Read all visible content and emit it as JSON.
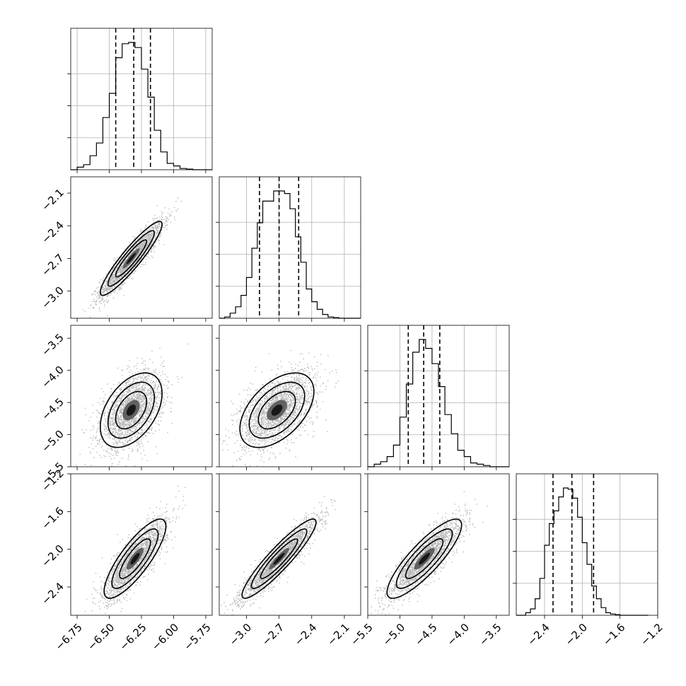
{
  "chart_data": {
    "type": "corner",
    "parameters": [
      {
        "range": [
          -6.8,
          -5.7
        ],
        "ticks": [
          -6.75,
          -6.5,
          -6.25,
          -6.0,
          -5.75
        ],
        "tick_labels": [
          "−6.75",
          "−6.50",
          "−6.25",
          "−6.00",
          "−5.75"
        ],
        "quantiles": [
          -6.45,
          -6.31,
          -6.18
        ],
        "hist_edges": [
          -6.8,
          -6.75,
          -6.7,
          -6.65,
          -6.6,
          -6.55,
          -6.5,
          -6.45,
          -6.4,
          -6.35,
          -6.3,
          -6.25,
          -6.2,
          -6.15,
          -6.1,
          -6.05,
          -6.0,
          -5.95,
          -5.9,
          -5.85,
          -5.8,
          -5.75,
          -5.7
        ],
        "hist_counts": [
          0,
          0.02,
          0.04,
          0.11,
          0.21,
          0.41,
          0.6,
          0.88,
          0.99,
          1.0,
          0.96,
          0.79,
          0.57,
          0.31,
          0.14,
          0.05,
          0.03,
          0.01,
          0.005,
          0,
          0,
          0
        ]
      },
      {
        "range": [
          -3.25,
          -1.95
        ],
        "ticks": [
          -3.0,
          -2.7,
          -2.4,
          -2.1
        ],
        "tick_labels": [
          "−3.0",
          "−2.7",
          "−2.4",
          "−2.1"
        ],
        "quantiles": [
          -2.88,
          -2.7,
          -2.52
        ],
        "hist_edges": [
          -3.25,
          -3.2,
          -3.15,
          -3.1,
          -3.05,
          -3.0,
          -2.95,
          -2.9,
          -2.85,
          -2.8,
          -2.75,
          -2.7,
          -2.65,
          -2.6,
          -2.55,
          -2.5,
          -2.45,
          -2.4,
          -2.35,
          -2.3,
          -2.25,
          -2.2,
          -2.15,
          -2.1,
          -2.05,
          -2.0,
          -1.95
        ],
        "hist_counts": [
          0,
          0.01,
          0.04,
          0.09,
          0.18,
          0.32,
          0.55,
          0.75,
          0.92,
          0.92,
          1.0,
          1.0,
          0.98,
          0.86,
          0.64,
          0.44,
          0.23,
          0.13,
          0.07,
          0.03,
          0.01,
          0.005,
          0,
          0,
          0,
          0
        ]
      },
      {
        "range": [
          -5.5,
          -3.3
        ],
        "ticks": [
          -5.5,
          -5.0,
          -4.5,
          -4.0,
          -3.5
        ],
        "tick_labels": [
          "−5.5",
          "−5.0",
          "−4.5",
          "−4.0",
          "−3.5"
        ],
        "quantiles": [
          -4.87,
          -4.63,
          -4.38
        ],
        "hist_edges": [
          -5.5,
          -5.4,
          -5.3,
          -5.2,
          -5.1,
          -5.0,
          -4.9,
          -4.8,
          -4.7,
          -4.6,
          -4.5,
          -4.4,
          -4.3,
          -4.2,
          -4.1,
          -4.0,
          -3.9,
          -3.8,
          -3.7,
          -3.6,
          -3.5,
          -3.4,
          -3.3
        ],
        "hist_counts": [
          0,
          0.02,
          0.04,
          0.08,
          0.17,
          0.39,
          0.65,
          0.9,
          1.0,
          0.93,
          0.81,
          0.63,
          0.41,
          0.26,
          0.13,
          0.08,
          0.03,
          0.02,
          0.01,
          0,
          0,
          0
        ]
      },
      {
        "range": [
          -2.7,
          -1.2
        ],
        "ticks": [
          -2.4,
          -2.0,
          -1.6,
          -1.2
        ],
        "tick_labels": [
          "−2.4",
          "−2.0",
          "−1.6",
          "−1.2"
        ],
        "quantiles": [
          -2.31,
          -2.11,
          -1.88
        ],
        "hist_edges": [
          -2.7,
          -2.65,
          -2.6,
          -2.55,
          -2.5,
          -2.45,
          -2.4,
          -2.35,
          -2.3,
          -2.25,
          -2.2,
          -2.15,
          -2.1,
          -2.05,
          -2.0,
          -1.95,
          -1.9,
          -1.85,
          -1.8,
          -1.75,
          -1.7,
          -1.65,
          -1.6,
          -1.55,
          -1.5,
          -1.45,
          -1.4,
          -1.35,
          -1.3
        ],
        "hist_counts": [
          0,
          0,
          0.02,
          0.05,
          0.13,
          0.29,
          0.55,
          0.72,
          0.82,
          0.93,
          1.0,
          0.99,
          0.92,
          0.77,
          0.57,
          0.4,
          0.23,
          0.13,
          0.06,
          0.02,
          0.01,
          0.005,
          0,
          0,
          0,
          0,
          0,
          0
        ]
      }
    ],
    "pairs": [
      {
        "x": 0,
        "y": 1,
        "center": [
          -6.33,
          -2.7
        ],
        "sigma": [
          0.12,
          0.17
        ],
        "rho": 0.92
      },
      {
        "x": 0,
        "y": 2,
        "center": [
          -6.33,
          -4.62
        ],
        "sigma": [
          0.12,
          0.29
        ],
        "rho": 0.45
      },
      {
        "x": 1,
        "y": 2,
        "center": [
          -2.72,
          -4.62
        ],
        "sigma": [
          0.17,
          0.29
        ],
        "rho": 0.5
      },
      {
        "x": 0,
        "y": 3,
        "center": [
          -6.3,
          -2.1
        ],
        "sigma": [
          0.12,
          0.21
        ],
        "rho": 0.82
      },
      {
        "x": 1,
        "y": 3,
        "center": [
          -2.7,
          -2.1
        ],
        "sigma": [
          0.17,
          0.21
        ],
        "rho": 0.92
      },
      {
        "x": 2,
        "y": 3,
        "center": [
          -4.62,
          -2.1
        ],
        "sigma": [
          0.29,
          0.21
        ],
        "rho": 0.85
      }
    ]
  }
}
